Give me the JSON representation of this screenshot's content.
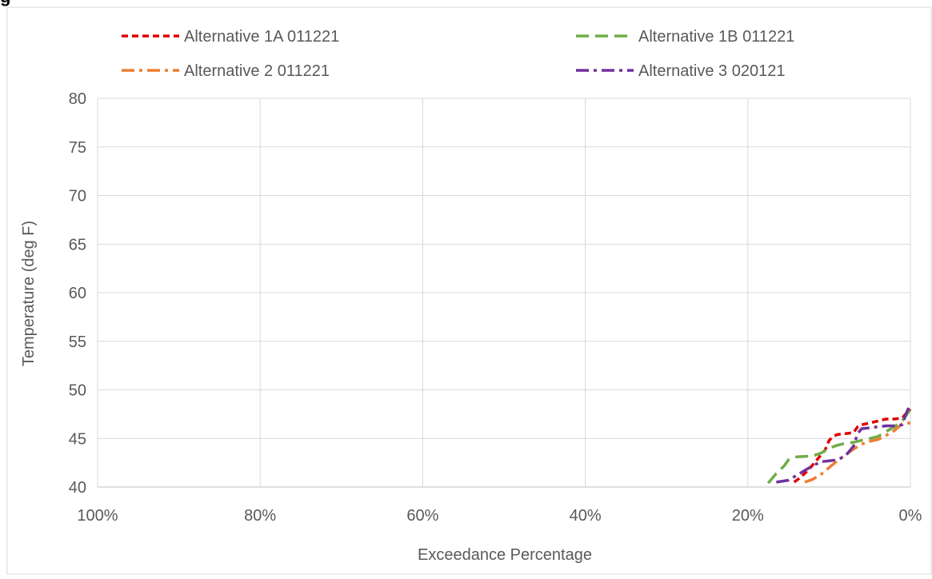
{
  "figure": {
    "title_fragment": "g"
  },
  "chart_data": {
    "type": "line",
    "title": "",
    "xlabel": "Exceedance Percentage",
    "ylabel": "Temperature (deg F)",
    "xlim": [
      100,
      0
    ],
    "ylim": [
      40,
      80
    ],
    "x_ticks": [
      100,
      80,
      60,
      40,
      20,
      0
    ],
    "x_tick_labels": [
      "100%",
      "80%",
      "60%",
      "40%",
      "20%",
      "0%"
    ],
    "y_ticks": [
      40,
      45,
      50,
      55,
      60,
      65,
      70,
      75,
      80
    ],
    "y_tick_labels": [
      "40",
      "45",
      "50",
      "55",
      "60",
      "65",
      "70",
      "75",
      "80"
    ],
    "grid": true,
    "legend_position": "top",
    "series": [
      {
        "name": "Alternative 1A 011221",
        "color": "#e00000",
        "dash": "short-dash",
        "x": [
          14.3,
          13.5,
          12.5,
          11.5,
          10.5,
          10.0,
          9.5,
          9.0,
          8.0,
          7.0,
          6.5,
          6.0,
          5.0,
          4.0,
          3.0,
          2.0,
          1.0,
          0.5,
          0.0
        ],
        "y": [
          40.5,
          41.0,
          41.8,
          42.8,
          43.8,
          44.8,
          45.2,
          45.4,
          45.5,
          45.6,
          46.2,
          46.4,
          46.6,
          46.8,
          47.0,
          47.0,
          47.1,
          47.6,
          48.0
        ]
      },
      {
        "name": "Alternative 1B 011221",
        "color": "#70ad47",
        "dash": "long-dash",
        "x": [
          17.5,
          16.5,
          15.5,
          15.0,
          14.5,
          14.0,
          12.0,
          11.0,
          10.0,
          9.0,
          8.0,
          7.0,
          6.0,
          5.0,
          4.0,
          3.0,
          2.0,
          1.0,
          0.0
        ],
        "y": [
          40.4,
          41.4,
          42.2,
          42.8,
          43.0,
          43.1,
          43.2,
          43.5,
          44.0,
          44.3,
          44.5,
          44.6,
          44.8,
          45.0,
          45.2,
          45.7,
          46.2,
          46.8,
          48.0
        ]
      },
      {
        "name": "Alternative 2 011221",
        "color": "#ed7d31",
        "dash": "long-dash-dot",
        "x": [
          13.0,
          12.0,
          11.0,
          10.0,
          9.0,
          8.0,
          7.0,
          6.0,
          5.0,
          4.0,
          3.0,
          2.0,
          1.0,
          0.0
        ],
        "y": [
          40.5,
          40.8,
          41.3,
          42.0,
          42.7,
          43.3,
          43.9,
          44.4,
          44.7,
          44.9,
          45.3,
          45.8,
          46.5,
          46.6
        ]
      },
      {
        "name": "Alternative 3 020121",
        "color": "#7030a0",
        "dash": "long-dash-dot",
        "x": [
          16.5,
          15.0,
          14.0,
          13.0,
          12.0,
          11.0,
          10.0,
          9.0,
          8.0,
          7.0,
          6.5,
          6.0,
          5.0,
          4.0,
          3.0,
          2.0,
          1.0,
          0.5,
          0.0
        ],
        "y": [
          40.5,
          40.7,
          41.2,
          41.7,
          42.2,
          42.6,
          42.7,
          42.8,
          43.2,
          44.2,
          45.5,
          46.0,
          46.1,
          46.2,
          46.3,
          46.3,
          46.4,
          47.6,
          48.6
        ]
      }
    ]
  }
}
